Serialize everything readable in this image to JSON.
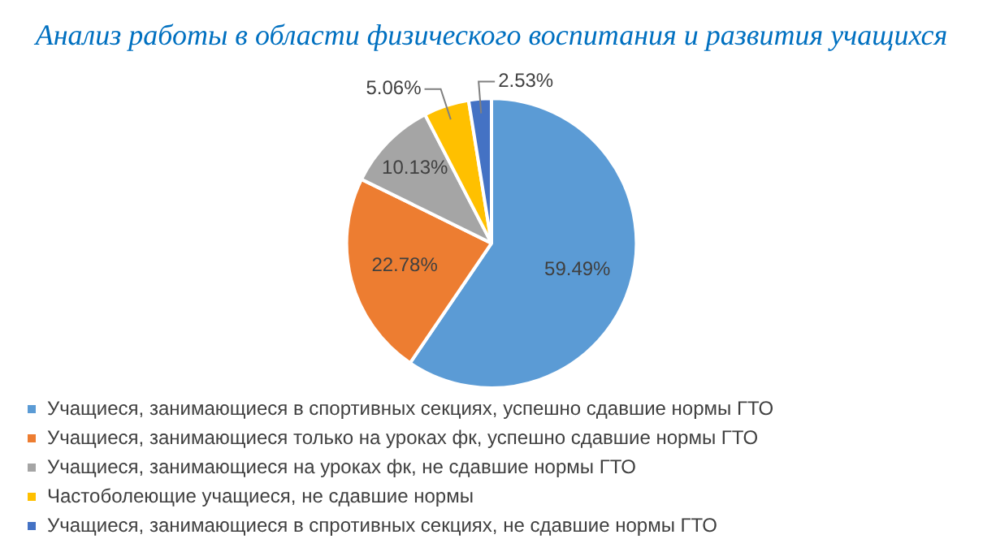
{
  "chart_data": {
    "type": "pie",
    "title": "Анализ работы в области физического воспитания и развития учащихся",
    "categories": [
      "Учащиеся, занимающиеся в спортивных секциях, успешно сдавшие нормы ГТО",
      "Учащиеся, занимающиеся только на уроках фк, успешно сдавшие нормы ГТО",
      "Учащиеся, занимающиеся на уроках фк, не сдавшие нормы ГТО",
      "Частоболеющие учащиеся, не сдавшие нормы",
      "Учащиеся, занимающиеся в спротивных секциях, не сдавшие нормы ГТО"
    ],
    "values": [
      59.49,
      22.78,
      10.13,
      5.06,
      2.53
    ],
    "colors": [
      "#5b9bd5",
      "#ed7d31",
      "#a5a5a5",
      "#ffc000",
      "#4472c4"
    ],
    "value_labels": [
      "59.49%",
      "22.78%",
      "10.13%",
      "5.06%",
      "2.53%"
    ],
    "legend": "bottom"
  }
}
